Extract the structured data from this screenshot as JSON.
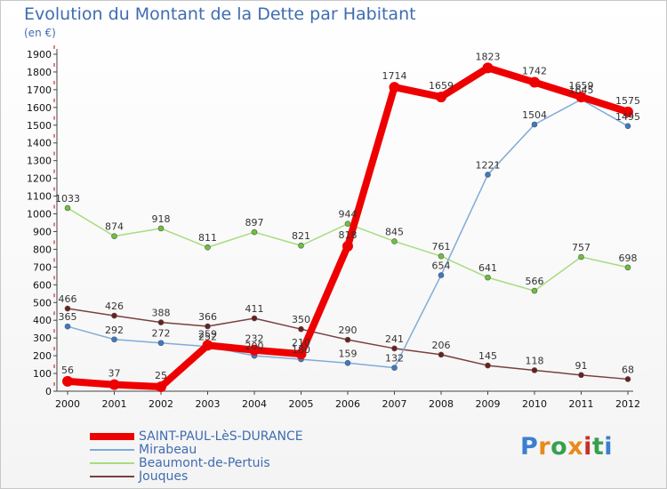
{
  "title": "Evolution du Montant de la Dette par Habitant",
  "unit": "(en €)",
  "brand": {
    "letters": [
      "P",
      "r",
      "o",
      "x",
      "i",
      "t",
      "i"
    ],
    "colors": [
      "#3b7fd0",
      "#e98a1c",
      "#37a050",
      "#e98a1c",
      "#c7302a",
      "#37a050",
      "#3b7fd0"
    ]
  },
  "chart_data": {
    "type": "line",
    "x": [
      "2000",
      "2001",
      "2002",
      "2003",
      "2004",
      "2005",
      "2006",
      "2007",
      "2008",
      "2009",
      "2010",
      "2011",
      "2012"
    ],
    "ylim": [
      0,
      1900
    ],
    "yticks": [
      0,
      100,
      200,
      300,
      400,
      500,
      600,
      700,
      800,
      900,
      1000,
      1100,
      1200,
      1300,
      1400,
      1500,
      1600,
      1700,
      1800,
      1900
    ],
    "grid": false,
    "legend_position": "bottom-left",
    "series": [
      {
        "name": "SAINT-PAUL-LèS-DURANCE",
        "color": "#ee0000",
        "marker": "#ee0000",
        "width": 8,
        "radius": 6,
        "values": [
          56,
          37,
          25,
          259,
          232,
          210,
          818,
          1714,
          1659,
          1823,
          1742,
          1659,
          1575
        ]
      },
      {
        "name": "Mirabeau",
        "color": "#7fabd8",
        "marker": "#3a7bc8",
        "width": 1.5,
        "radius": 3,
        "values": [
          365,
          292,
          272,
          252,
          200,
          180,
          159,
          132,
          654,
          1221,
          1504,
          1645,
          1495
        ]
      },
      {
        "name": "Beaumont-de-Pertuis",
        "color": "#a8dc80",
        "marker": "#6cc23a",
        "width": 1.5,
        "radius": 3,
        "values": [
          1033,
          874,
          918,
          811,
          897,
          821,
          944,
          845,
          761,
          641,
          566,
          757,
          698
        ]
      },
      {
        "name": "Jouques",
        "color": "#7a4040",
        "marker": "#6b1f1f",
        "width": 1.5,
        "radius": 3,
        "values": [
          466,
          426,
          388,
          366,
          411,
          350,
          290,
          241,
          206,
          145,
          118,
          91,
          68
        ]
      }
    ]
  }
}
